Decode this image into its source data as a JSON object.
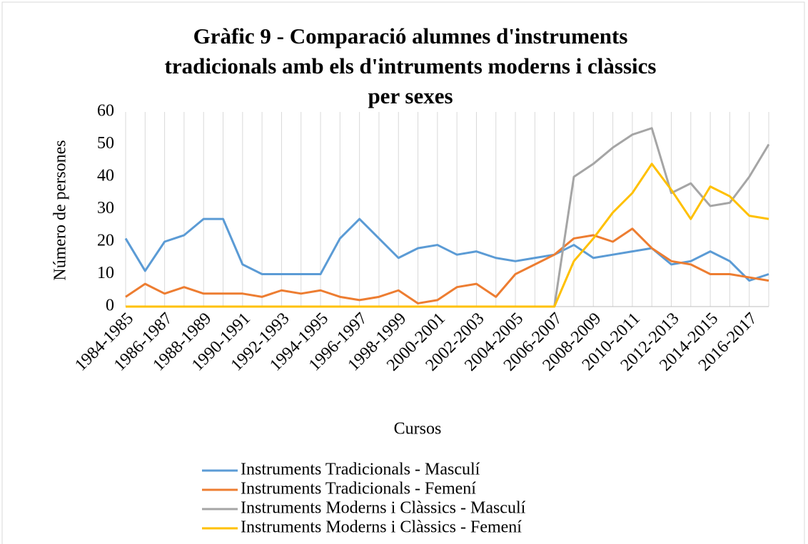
{
  "chart_data": {
    "type": "line",
    "title": "Gràfic 9 - Comparació alumnes d'instruments tradicionals amb els d'intruments moderns i clàssics per sexes",
    "x_label": "Cursos",
    "y_label": "Número de persones",
    "categories": [
      "1984-1985",
      null,
      "1986-1987",
      null,
      "1988-1989",
      null,
      "1990-1991",
      null,
      "1992-1993",
      null,
      "1994-1995",
      null,
      "1996-1997",
      null,
      "1998-1999",
      null,
      "2000-2001",
      null,
      "2002-2003",
      null,
      "2004-2005",
      null,
      "2006-2007",
      null,
      "2008-2009",
      null,
      "2010-2011",
      null,
      "2012-2013",
      null,
      "2014-2015",
      null,
      "2016-2017",
      null
    ],
    "series": [
      {
        "name": "Instruments Tradicionals - Masculí",
        "color": "#5b9bd5",
        "values": [
          21,
          11,
          20,
          22,
          27,
          27,
          13,
          10,
          10,
          10,
          10,
          21,
          27,
          21,
          15,
          18,
          19,
          16,
          17,
          15,
          14,
          15,
          16,
          19,
          15,
          16,
          17,
          18,
          13,
          14,
          17,
          14,
          8,
          10
        ]
      },
      {
        "name": "Instruments Tradicionals - Femení",
        "color": "#ed7d31",
        "values": [
          3,
          7,
          4,
          6,
          4,
          4,
          4,
          3,
          5,
          4,
          5,
          3,
          2,
          3,
          5,
          1,
          2,
          6,
          7,
          3,
          10,
          13,
          16,
          21,
          22,
          20,
          24,
          18,
          14,
          13,
          10,
          10,
          9,
          8
        ]
      },
      {
        "name": "Instruments Moderns i Clàssics - Masculí",
        "color": "#a5a5a5",
        "values": [
          0,
          0,
          0,
          0,
          0,
          0,
          0,
          0,
          0,
          0,
          0,
          0,
          0,
          0,
          0,
          0,
          0,
          0,
          0,
          0,
          0,
          0,
          0,
          40,
          44,
          49,
          53,
          55,
          35,
          38,
          31,
          32,
          40,
          50
        ]
      },
      {
        "name": "Instruments Moderns i Clàssics - Femení",
        "color": "#ffc000",
        "values": [
          0,
          0,
          0,
          0,
          0,
          0,
          0,
          0,
          0,
          0,
          0,
          0,
          0,
          0,
          0,
          0,
          0,
          0,
          0,
          0,
          0,
          0,
          0,
          14,
          21,
          29,
          35,
          44,
          36,
          27,
          37,
          34,
          28,
          27
        ]
      }
    ],
    "ylim": [
      0,
      60
    ],
    "yticks": [
      0,
      10,
      20,
      30,
      40,
      50,
      60
    ],
    "grid": true,
    "legend": "bottom"
  }
}
